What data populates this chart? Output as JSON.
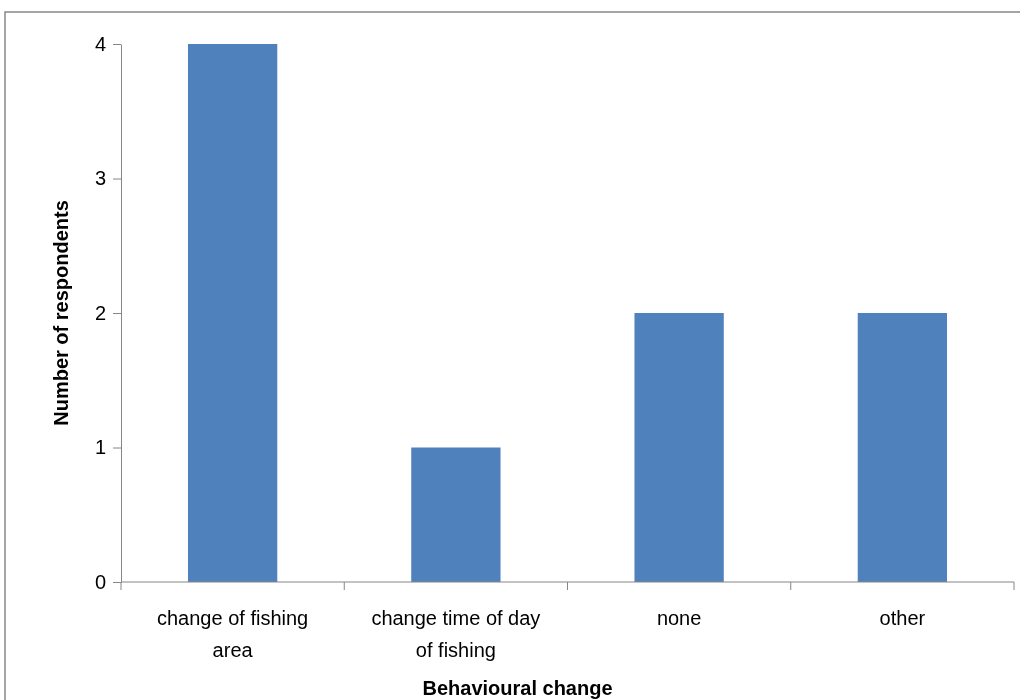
{
  "chart_data": {
    "type": "bar",
    "xlabel": "Behavioural change",
    "ylabel": "Number of respondents",
    "categories": [
      "change of fishing area",
      "change time of day of fishing",
      "none",
      "other"
    ],
    "values": [
      4,
      1,
      2,
      2
    ],
    "color": "#4f81bd",
    "ylim": [
      0,
      4
    ],
    "yticks": [
      0,
      1,
      2,
      3,
      4
    ],
    "grid": false
  }
}
